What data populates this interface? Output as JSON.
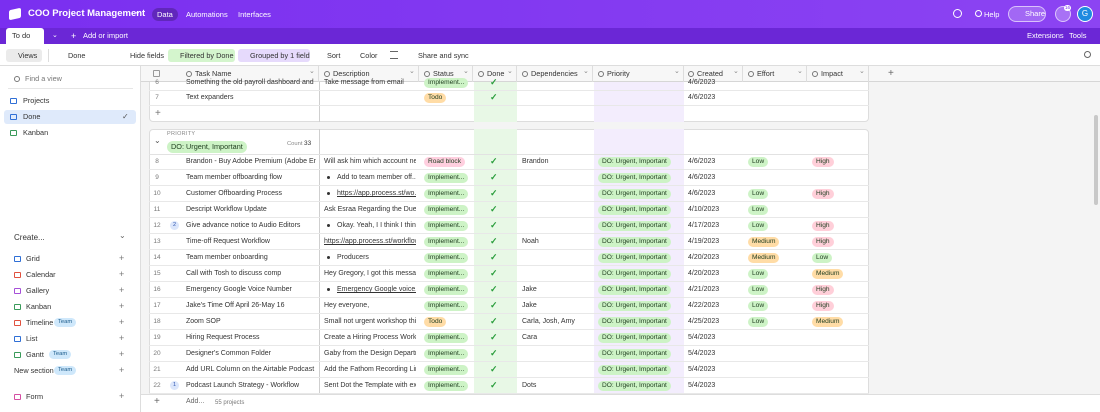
{
  "header": {
    "app_name": "COO Project Management",
    "tabs": [
      "Data",
      "Automations",
      "Interfaces"
    ],
    "help": "Help",
    "share": "Share",
    "notifications": "16",
    "avatar": "G"
  },
  "tables_bar": {
    "table": "To do",
    "add": "Add or import",
    "extensions": "Extensions",
    "tools": "Tools"
  },
  "view_bar": {
    "views": "Views",
    "view": "Done",
    "hide": "Hide fields",
    "filter": "Filtered by Done",
    "group": "Grouped by 1 field",
    "sort": "Sort",
    "color": "Color",
    "share": "Share and sync"
  },
  "sidebar": {
    "search": "Find a view",
    "views": [
      "Projects",
      "Done",
      "Kanban"
    ],
    "create_title": "Create...",
    "create": [
      {
        "label": "Grid"
      },
      {
        "label": "Calendar"
      },
      {
        "label": "Gallery"
      },
      {
        "label": "Kanban"
      },
      {
        "label": "Timeline",
        "badge": "Team"
      },
      {
        "label": "List"
      },
      {
        "label": "Gantt",
        "badge": "Team"
      },
      {
        "label": "New section",
        "badge": "Team"
      },
      {
        "label": "Form"
      }
    ]
  },
  "grid": {
    "columns": [
      "Task Name",
      "Description",
      "Status",
      "Done",
      "Dependencies",
      "Priority",
      "Created",
      "Effort",
      "Impact"
    ],
    "pill_colors": {
      "Implement...": "#cdf3c6",
      "Road block": "#ffcfdf",
      "Todo": "#ffdca6",
      "DO: Urgent, Important": "#cdf3c6",
      "Low": "#cdf3c6",
      "Medium": "#ffdca6",
      "High": "#ffcfd9"
    },
    "top_rows": [
      {
        "num": "6",
        "task": "Something the old payroll dashboard and s...",
        "desc": "Take message from email",
        "status": "Implement...",
        "done": true,
        "created": "4/6/2023"
      },
      {
        "num": "7",
        "task": "Text expanders",
        "status": "Todo",
        "done": true,
        "created": "4/6/2023"
      }
    ],
    "group": {
      "field": "PRIORITY",
      "value": "DO: Urgent, Important",
      "count_label": "Count",
      "count": 33
    },
    "rows": [
      {
        "num": "8",
        "task": "Brandon - Buy Adobe Premium (Adobe Enh...",
        "desc": "Will ask him which account nee...",
        "status": "Road block",
        "done": true,
        "deps": "Brandon",
        "priority": "DO: Urgent, Important",
        "created": "4/6/2023",
        "effort": "Low",
        "impact": "High"
      },
      {
        "num": "9",
        "task": "Team member offboarding flow",
        "desc": "Add to team member off...",
        "desc_style": "bullet",
        "status": "Implement...",
        "done": true,
        "priority": "DO: Urgent, Important",
        "created": "4/6/2023"
      },
      {
        "num": "10",
        "task": "Customer Offboarding Process",
        "desc": "https://app.process.st/wo...",
        "desc_style": "bullet-link",
        "status": "Implement...",
        "done": true,
        "priority": "DO: Urgent, Important",
        "created": "4/6/2023",
        "effort": "Low",
        "impact": "High"
      },
      {
        "num": "11",
        "task": "Descript Workflow Update",
        "desc": "Ask Esraa Regarding the Due d...",
        "status": "Implement...",
        "done": true,
        "priority": "DO: Urgent, Important",
        "created": "4/10/2023",
        "effort": "Low"
      },
      {
        "num": "12",
        "comments": "2",
        "task": "Give advance notice to Audio Editors",
        "desc": "Okay. Yeah, I I think I thin...",
        "desc_style": "bullet",
        "status": "Implement...",
        "done": true,
        "priority": "DO: Urgent, Important",
        "created": "4/17/2023",
        "effort": "Low",
        "impact": "High"
      },
      {
        "num": "13",
        "task": "Time-off Request Workflow",
        "desc": "https://app.process.st/workflow...",
        "desc_style": "link",
        "status": "Implement...",
        "done": true,
        "deps": "Noah",
        "priority": "DO: Urgent, Important",
        "created": "4/19/2023",
        "effort": "Medium",
        "impact": "High"
      },
      {
        "num": "14",
        "task": "Team member onboarding",
        "desc": "Producers",
        "desc_style": "bullet",
        "status": "Implement...",
        "done": true,
        "priority": "DO: Urgent, Important",
        "created": "4/20/2023",
        "effort": "Medium",
        "impact": "Low"
      },
      {
        "num": "15",
        "task": "Call with Tosh to discuss comp",
        "desc": "Hey Gregory, I got this message...",
        "status": "Implement...",
        "done": true,
        "priority": "DO: Urgent, Important",
        "created": "4/20/2023",
        "effort": "Low",
        "impact": "Medium"
      },
      {
        "num": "16",
        "task": "Emergency Google Voice Number",
        "desc": "Emergency Google voice...",
        "desc_style": "bullet-link",
        "status": "Implement...",
        "done": true,
        "deps": "Jake",
        "priority": "DO: Urgent, Important",
        "created": "4/21/2023",
        "effort": "Low",
        "impact": "High"
      },
      {
        "num": "17",
        "task": "Jake's Time Off April 26-May 16",
        "desc": "Hey everyone,",
        "status": "Implement...",
        "done": true,
        "deps": "Jake",
        "priority": "DO: Urgent, Important",
        "created": "4/22/2023",
        "effort": "Low",
        "impact": "High"
      },
      {
        "num": "18",
        "task": "Zoom SOP",
        "desc": "Small not urgent workshop thin...",
        "status": "Todo",
        "done": true,
        "deps": "Carla, Josh, Amy",
        "priority": "DO: Urgent, Important",
        "created": "4/25/2023",
        "effort": "Low",
        "impact": "Medium"
      },
      {
        "num": "19",
        "task": "Hiring Request Process",
        "desc": "Create a Hiring Process Workflow",
        "status": "Implement...",
        "done": true,
        "deps": "Cara",
        "priority": "DO: Urgent, Important",
        "created": "5/4/2023"
      },
      {
        "num": "20",
        "task": "Designer's Common Folder",
        "desc": "Gaby from the Design Departm...",
        "status": "Implement...",
        "done": true,
        "priority": "DO: Urgent, Important",
        "created": "5/4/2023"
      },
      {
        "num": "21",
        "task": "Add URL Column on the Airtable Podcast S...",
        "desc": "Add the Fathom Recording Lin...",
        "status": "Implement...",
        "done": true,
        "priority": "DO: Urgent, Important",
        "created": "5/4/2023"
      },
      {
        "num": "22",
        "comments": "1",
        "task": "Podcast Launch Strategy - Workflow",
        "desc": "Sent Dot the Template with exa...",
        "status": "Implement...",
        "done": true,
        "deps": "Dots",
        "priority": "DO: Urgent, Important",
        "created": "5/4/2023"
      }
    ],
    "footer": {
      "add": "Add...",
      "records": "55 projects"
    }
  }
}
